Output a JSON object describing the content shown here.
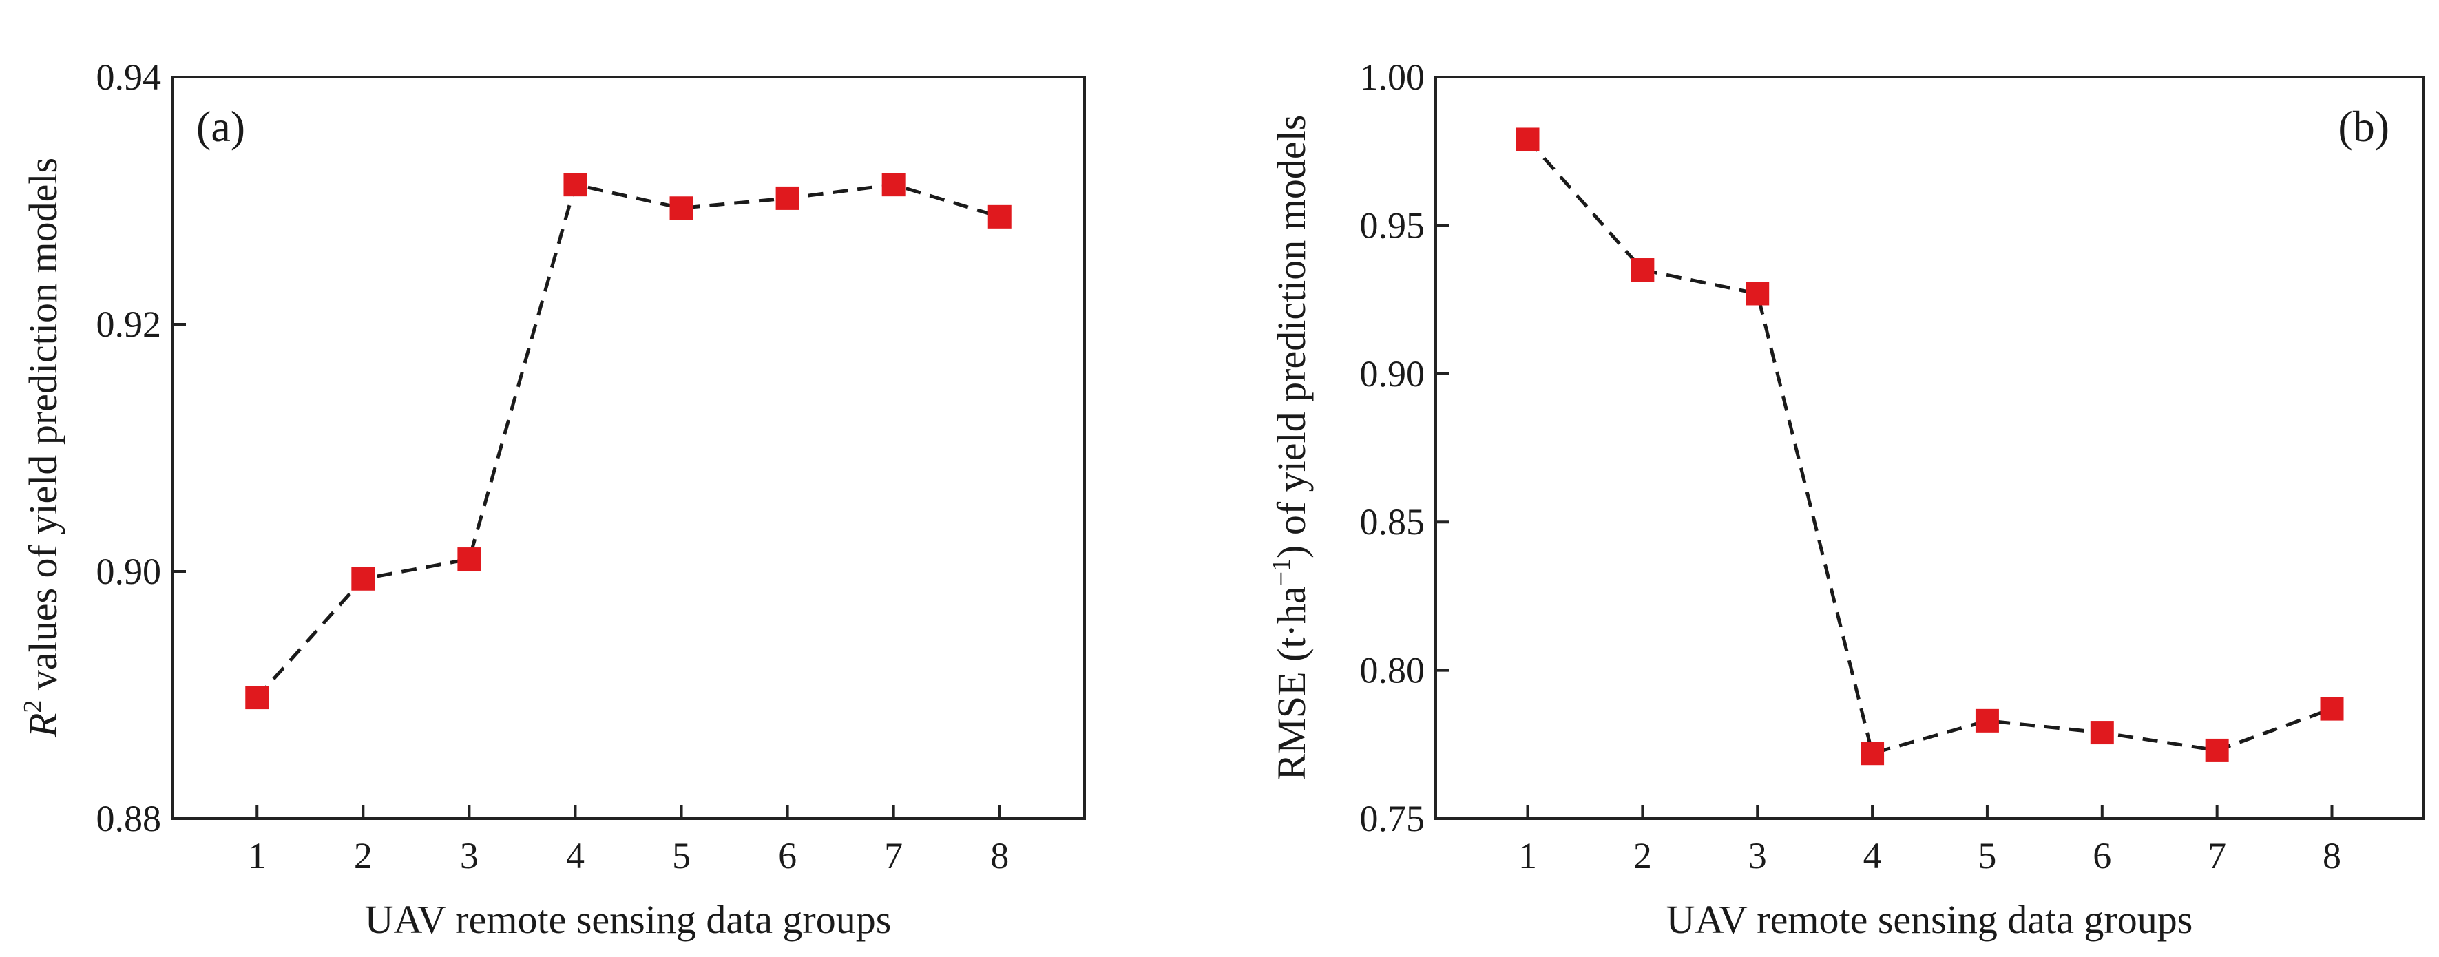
{
  "colors": {
    "marker": "#e0191e",
    "line": "#1a1a1a",
    "axis": "#222222"
  },
  "chart_data": [
    {
      "id": "a",
      "type": "line",
      "panel_label": "(a)",
      "xlabel": "UAV remote sensing data groups",
      "ylabel_italic": "R",
      "ylabel_sup": "2",
      "ylabel_rest": " values of yield prediction models",
      "x": [
        1,
        2,
        3,
        4,
        5,
        6,
        7,
        8
      ],
      "values": [
        0.8898,
        0.8994,
        0.901,
        0.9313,
        0.9294,
        0.9302,
        0.9313,
        0.9287
      ],
      "xlim": [
        0.2,
        8.8
      ],
      "ylim": [
        0.88,
        0.94
      ],
      "xticks": [
        "1",
        "2",
        "3",
        "4",
        "5",
        "6",
        "7",
        "8"
      ],
      "yticks": [
        0.88,
        0.9,
        0.92,
        0.94
      ],
      "ytick_labels": [
        "0.88",
        "0.90",
        "0.92",
        "0.94"
      ],
      "legend": "none",
      "grid": false
    },
    {
      "id": "b",
      "type": "line",
      "panel_label": "(b)",
      "xlabel": "UAV remote sensing data groups",
      "ylabel_pre": "RMSE (t·ha",
      "ylabel_sup": "−1",
      "ylabel_post": ") of yield prediction models",
      "x": [
        1,
        2,
        3,
        4,
        5,
        6,
        7,
        8
      ],
      "values": [
        0.979,
        0.935,
        0.927,
        0.772,
        0.783,
        0.779,
        0.773,
        0.787
      ],
      "xlim": [
        0.2,
        8.8
      ],
      "ylim": [
        0.75,
        1.0
      ],
      "xticks": [
        "1",
        "2",
        "3",
        "4",
        "5",
        "6",
        "7",
        "8"
      ],
      "yticks": [
        0.75,
        0.8,
        0.85,
        0.9,
        0.95,
        1.0
      ],
      "ytick_labels": [
        "0.75",
        "0.80",
        "0.85",
        "0.90",
        "0.95",
        "1.00"
      ],
      "legend": "none",
      "grid": false
    }
  ]
}
